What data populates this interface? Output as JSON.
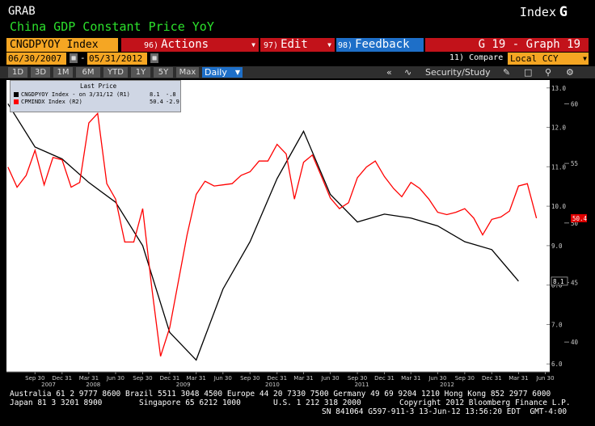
{
  "header": {
    "grab_label": "GRAB",
    "index_label": "Index",
    "g_mark": "G",
    "subtitle": "China GDP Constant Price YoY"
  },
  "toolbar": {
    "ticker": "CNGDPYOY Index",
    "actions": {
      "num": "96)",
      "label": "Actions"
    },
    "edit": {
      "num": "97)",
      "label": "Edit"
    },
    "feedback": {
      "num": "98)",
      "label": "Feedback"
    },
    "graph_id": "G 19 - Graph 19"
  },
  "range_bar": {
    "start_date": "06/30/2007",
    "end_date": "05/31/2012",
    "compare_label": "11) Compare",
    "currency": "Local CCY"
  },
  "period_bar": {
    "periods": [
      "1D",
      "3D",
      "1M",
      "6M",
      "YTD",
      "1Y",
      "5Y",
      "Max"
    ],
    "frequency": "Daily",
    "security_study": "Security/Study"
  },
  "legend": {
    "title": "Last Price",
    "rows": [
      {
        "name": "CNGDPYOY Index - on 3/31/12 (R1)",
        "value": "8.1",
        "change": "-.8",
        "color": "#000000"
      },
      {
        "name": "CPMINDX Index  (R2)",
        "value": "50.4",
        "change": "-2.9",
        "color": "#ff0000"
      }
    ]
  },
  "colors": {
    "background": "#000000",
    "plot_background": "#ffffff",
    "series_gdp": "#000000",
    "series_pmi": "#ff0000",
    "accent_orange": "#f5a623",
    "accent_red": "#c2121a",
    "accent_blue": "#1e6fc8"
  },
  "chart_data": {
    "type": "line",
    "x_tick_labels": [
      "Sep 30",
      "Dec 31",
      "Mar 31",
      "Jun 30",
      "Sep 30",
      "Dec 31",
      "Mar 31",
      "Jun 30",
      "Sep 30",
      "Dec 31",
      "Mar 31",
      "Jun 30",
      "Sep 30",
      "Dec 31",
      "Mar 31",
      "Jun 30",
      "Sep 30",
      "Dec 31",
      "Mar 31",
      "Jun 30",
      "Sep 30",
      "Dec 31",
      "Mar 31"
    ],
    "x_tick_dates": [
      "2007-09-30",
      "2007-12-31",
      "2008-03-31",
      "2008-06-30",
      "2008-09-30",
      "2008-12-31",
      "2009-03-31",
      "2009-06-30",
      "2009-09-30",
      "2009-12-31",
      "2010-03-31",
      "2010-06-30",
      "2010-09-30",
      "2010-12-31",
      "2011-03-31",
      "2011-06-30",
      "2011-09-30",
      "2011-12-31",
      "2012-03-31",
      "2012-06-30",
      "2012-09-30",
      "2012-12-31",
      "2013-03-31"
    ],
    "year_labels": [
      {
        "label": "2007",
        "date": "2007-11-15"
      },
      {
        "label": "2008",
        "date": "2008-04-15"
      },
      {
        "label": "2009",
        "date": "2009-02-15"
      },
      {
        "label": "2010",
        "date": "2009-12-15"
      },
      {
        "label": "2011",
        "date": "2010-10-15"
      },
      {
        "label": "2012",
        "date": "2011-08-01"
      }
    ],
    "x_start": "2007-06-30",
    "x_end": "2012-05-31",
    "right_axis_r1": {
      "label": "R1",
      "ticks": [
        6.0,
        7.0,
        8.0,
        9.0,
        10.0,
        11.0,
        12.0,
        13.0
      ],
      "range": [
        5.8,
        13.2
      ]
    },
    "right_axis_r2": {
      "label": "R2",
      "ticks": [
        40,
        45,
        50,
        55,
        60
      ],
      "range": [
        37.5,
        62.0
      ]
    },
    "last_value_tags": [
      {
        "series": "CNGDPYOY Index",
        "value": "8.1"
      },
      {
        "series": "CPMINDX Index",
        "value": "50.4"
      }
    ],
    "series": [
      {
        "name": "CNGDPYOY Index",
        "axis": "R1",
        "color": "#000000",
        "points": [
          [
            "2007-06-30",
            12.6
          ],
          [
            "2007-09-30",
            11.5
          ],
          [
            "2007-12-31",
            11.2
          ],
          [
            "2008-03-31",
            10.6
          ],
          [
            "2008-06-30",
            10.1
          ],
          [
            "2008-09-30",
            9.0
          ],
          [
            "2008-12-31",
            6.8
          ],
          [
            "2009-03-31",
            6.1
          ],
          [
            "2009-06-30",
            7.9
          ],
          [
            "2009-09-30",
            9.1
          ],
          [
            "2009-12-31",
            10.7
          ],
          [
            "2010-03-31",
            11.9
          ],
          [
            "2010-06-30",
            10.3
          ],
          [
            "2010-09-30",
            9.6
          ],
          [
            "2010-12-31",
            9.8
          ],
          [
            "2011-03-31",
            9.7
          ],
          [
            "2011-06-30",
            9.5
          ],
          [
            "2011-09-30",
            9.1
          ],
          [
            "2011-12-31",
            8.9
          ],
          [
            "2012-03-31",
            8.1
          ]
        ]
      },
      {
        "name": "CPMINDX Index",
        "axis": "R2",
        "color": "#ff0000",
        "points": [
          [
            "2007-06-30",
            54.7
          ],
          [
            "2007-07-31",
            53.0
          ],
          [
            "2007-08-31",
            54.0
          ],
          [
            "2007-09-30",
            56.1
          ],
          [
            "2007-10-31",
            53.2
          ],
          [
            "2007-11-30",
            55.5
          ],
          [
            "2007-12-31",
            55.3
          ],
          [
            "2008-01-31",
            53.0
          ],
          [
            "2008-02-29",
            53.4
          ],
          [
            "2008-03-31",
            58.4
          ],
          [
            "2008-04-30",
            59.2
          ],
          [
            "2008-05-31",
            53.3
          ],
          [
            "2008-06-30",
            52.0
          ],
          [
            "2008-07-31",
            48.4
          ],
          [
            "2008-08-31",
            48.4
          ],
          [
            "2008-09-30",
            51.2
          ],
          [
            "2008-10-31",
            44.6
          ],
          [
            "2008-11-30",
            38.8
          ],
          [
            "2008-12-31",
            41.2
          ],
          [
            "2009-01-31",
            45.3
          ],
          [
            "2009-02-28",
            49.0
          ],
          [
            "2009-03-31",
            52.4
          ],
          [
            "2009-04-30",
            53.5
          ],
          [
            "2009-05-31",
            53.1
          ],
          [
            "2009-06-30",
            53.2
          ],
          [
            "2009-07-31",
            53.3
          ],
          [
            "2009-08-31",
            54.0
          ],
          [
            "2009-09-30",
            54.3
          ],
          [
            "2009-10-31",
            55.2
          ],
          [
            "2009-11-30",
            55.2
          ],
          [
            "2009-12-31",
            56.6
          ],
          [
            "2010-01-31",
            55.8
          ],
          [
            "2010-02-28",
            52.0
          ],
          [
            "2010-03-31",
            55.1
          ],
          [
            "2010-04-30",
            55.7
          ],
          [
            "2010-05-31",
            53.9
          ],
          [
            "2010-06-30",
            52.1
          ],
          [
            "2010-07-31",
            51.2
          ],
          [
            "2010-08-31",
            51.7
          ],
          [
            "2010-09-30",
            53.8
          ],
          [
            "2010-10-31",
            54.7
          ],
          [
            "2010-11-30",
            55.2
          ],
          [
            "2010-12-31",
            53.9
          ],
          [
            "2011-01-31",
            52.9
          ],
          [
            "2011-02-28",
            52.2
          ],
          [
            "2011-03-31",
            53.4
          ],
          [
            "2011-04-30",
            52.9
          ],
          [
            "2011-05-31",
            52.0
          ],
          [
            "2011-06-30",
            50.9
          ],
          [
            "2011-07-31",
            50.7
          ],
          [
            "2011-08-31",
            50.9
          ],
          [
            "2011-09-30",
            51.2
          ],
          [
            "2011-10-31",
            50.4
          ],
          [
            "2011-11-30",
            49.0
          ],
          [
            "2011-12-31",
            50.3
          ],
          [
            "2012-01-31",
            50.5
          ],
          [
            "2012-02-29",
            51.0
          ],
          [
            "2012-03-31",
            53.1
          ],
          [
            "2012-04-30",
            53.3
          ],
          [
            "2012-05-31",
            50.4
          ]
        ]
      }
    ]
  },
  "footer": {
    "line1": "Australia 61 2 9777 8600 Brazil 5511 3048 4500 Europe 44 20 7330 7500 Germany 49 69 9204 1210 Hong Kong 852 2977 6000",
    "line2_left": "Japan 81 3 3201 8900",
    "line2_mid": "Singapore 65 6212 1000",
    "line2_mid2": "U.S. 1 212 318 2000",
    "line2_right": "Copyright 2012 Bloomberg Finance L.P.",
    "line3": "SN 841064 G597-911-3 13-Jun-12 13:56:20 EDT  GMT-4:00"
  }
}
